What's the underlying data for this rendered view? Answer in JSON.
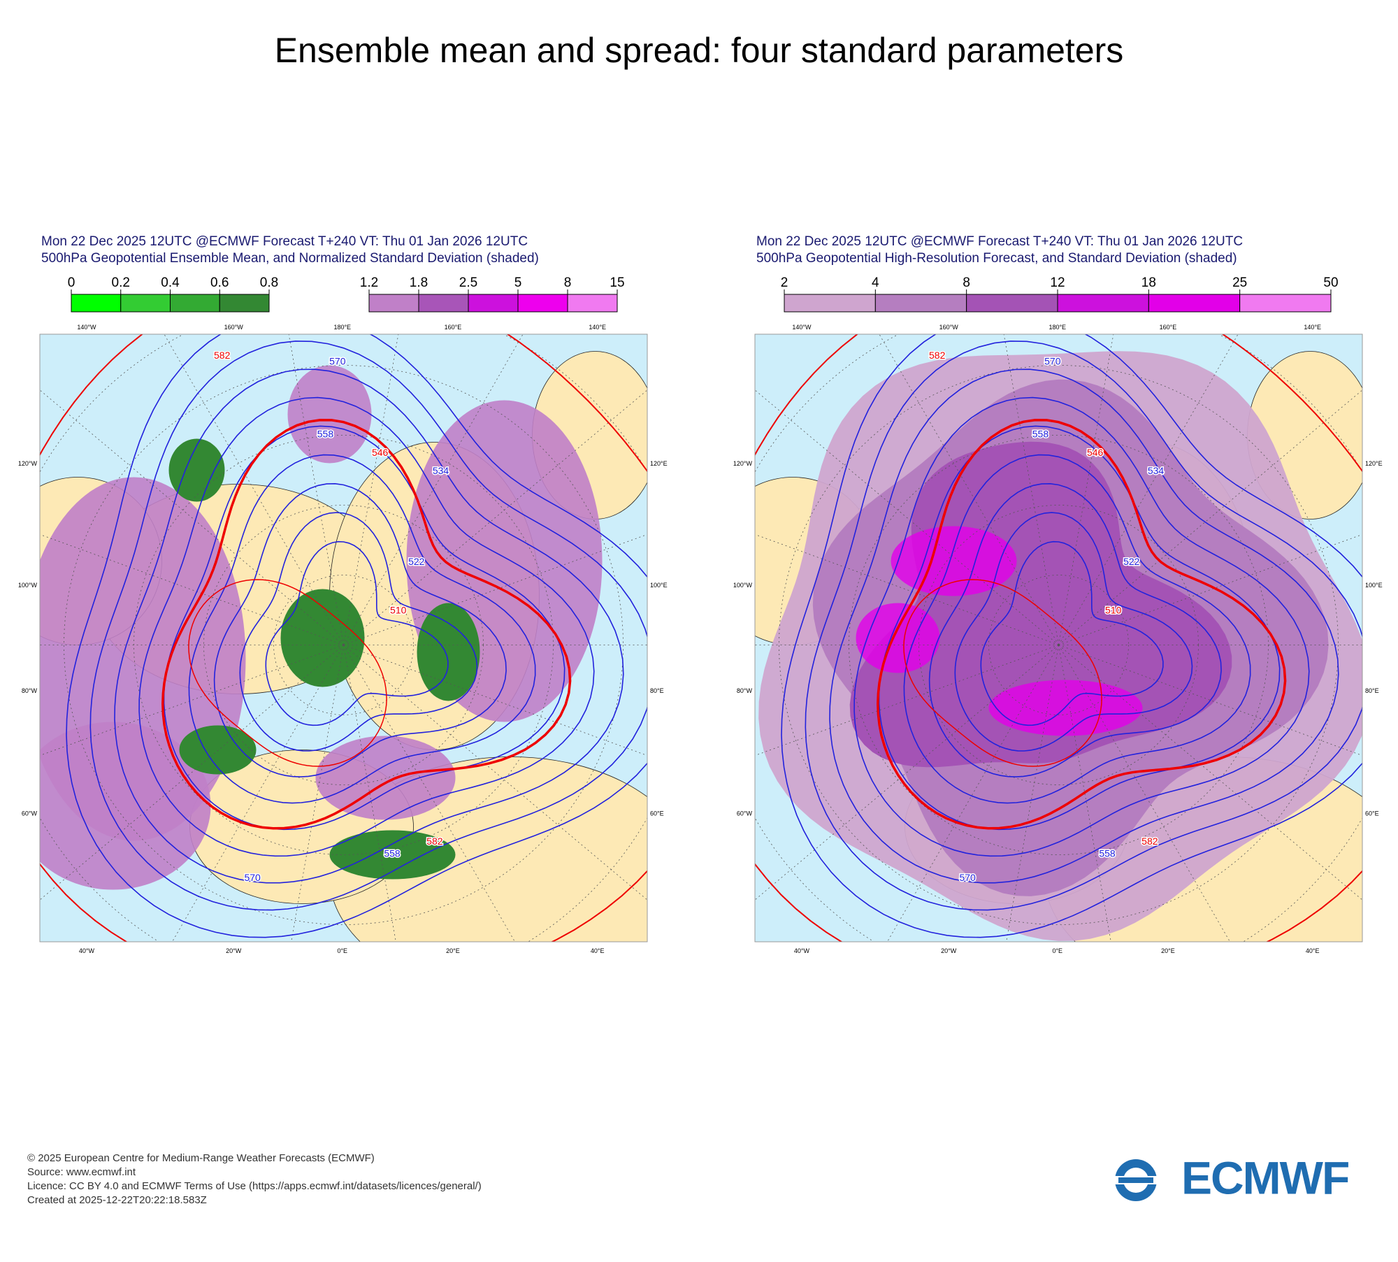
{
  "title": "Ensemble mean and spread: four standard parameters",
  "panels": [
    {
      "header": [
        "Mon 22 Dec 2025 12UTC @ECMWF Forecast T+240 VT: Thu 01 Jan 2026 12UTC",
        "500hPa Geopotential Ensemble Mean, and Normalized Standard Deviation (shaded)"
      ],
      "colorbars": [
        {
          "ticks": [
            0,
            0.2,
            0.4,
            0.6,
            0.8
          ],
          "colors": [
            "#00ff00",
            "#33cc33",
            "#33aa33",
            "#338833"
          ]
        },
        {
          "ticks": [
            1.2,
            1.8,
            2.5,
            5,
            8,
            15
          ],
          "colors": [
            "#c080c8",
            "#a855b8",
            "#cc11dd",
            "#ee00ee",
            "#f07af0"
          ]
        }
      ],
      "contour_labels": [
        570,
        558,
        546,
        534,
        522,
        510,
        582,
        582,
        570,
        558
      ]
    },
    {
      "header": [
        "Mon 22 Dec 2025 12UTC @ECMWF Forecast T+240 VT: Thu 01 Jan 2026 12UTC",
        "500hPa Geopotential High-Resolution Forecast, and Standard Deviation (shaded)"
      ],
      "colorbars": [
        {
          "ticks": [
            2,
            4,
            8,
            12,
            18,
            25,
            50
          ],
          "colors": [
            "#cfa5cf",
            "#b57ec0",
            "#a453b5",
            "#cc11dd",
            "#e200e8",
            "#f07af0"
          ]
        }
      ],
      "contour_labels": [
        570,
        558,
        546,
        534,
        522,
        510,
        582,
        582,
        570,
        558
      ]
    }
  ],
  "map_labels": {
    "top": [
      "140°W",
      "160°W",
      "180°E",
      "160°E",
      "140°E"
    ],
    "bottom": [
      "40°W",
      "20°W",
      "0°E",
      "20°E",
      "40°E"
    ],
    "left": [
      "120°W",
      "100°W",
      "80°W",
      "60°W"
    ],
    "right": [
      "120°E",
      "100°E",
      "80°E",
      "60°E"
    ]
  },
  "footer": [
    "© 2025 European Centre for Medium-Range Weather Forecasts (ECMWF)",
    "Source: www.ecmwf.int",
    "Licence: CC BY 4.0 and ECMWF Terms of Use (https://apps.ecmwf.int/datasets/licences/general/)",
    "Created at 2025-12-22T20:22:18.583Z"
  ],
  "logo": "ECMWF"
}
